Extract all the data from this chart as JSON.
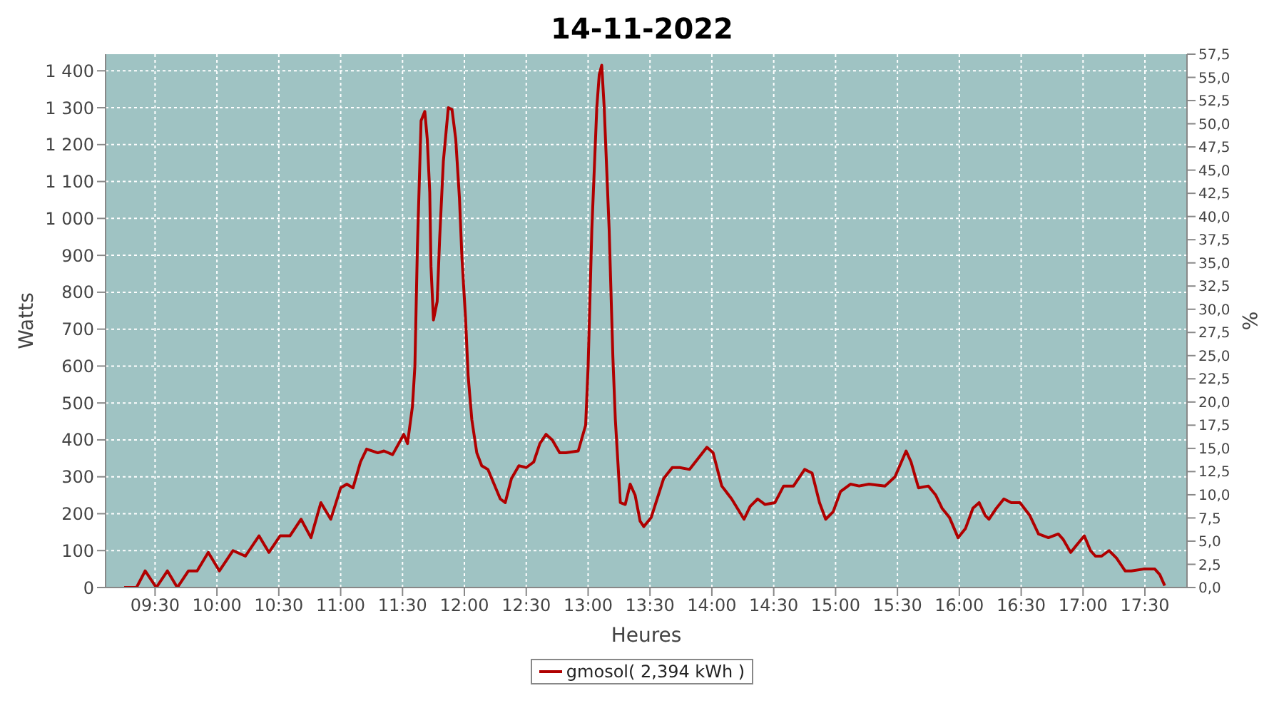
{
  "chart_data": {
    "type": "line",
    "title": "14-11-2022",
    "xlabel": "Heures",
    "ylabel": "Watts",
    "y2label": "%",
    "x": [
      9.25,
      9.35,
      9.42,
      9.51,
      9.6,
      9.68,
      9.77,
      9.84,
      9.93,
      10.02,
      10.13,
      10.23,
      10.34,
      10.42,
      10.51,
      10.59,
      10.68,
      10.76,
      10.84,
      10.92,
      11.0,
      11.05,
      11.1,
      11.16,
      11.21,
      11.3,
      11.35,
      11.42,
      11.51,
      11.54,
      11.58,
      11.6,
      11.62,
      11.65,
      11.68,
      11.7,
      11.72,
      11.73,
      11.75,
      11.78,
      11.8,
      11.83,
      11.87,
      11.9,
      11.93,
      11.96,
      11.98,
      12.01,
      12.03,
      12.06,
      12.1,
      12.14,
      12.19,
      12.24,
      12.29,
      12.33,
      12.38,
      12.44,
      12.5,
      12.56,
      12.61,
      12.66,
      12.71,
      12.77,
      12.82,
      12.92,
      12.98,
      13.0,
      13.03,
      13.07,
      13.09,
      13.11,
      13.13,
      13.17,
      13.2,
      13.22,
      13.26,
      13.3,
      13.34,
      13.38,
      13.42,
      13.45,
      13.51,
      13.61,
      13.68,
      13.74,
      13.82,
      13.89,
      13.96,
      14.01,
      14.08,
      14.16,
      14.26,
      14.31,
      14.37,
      14.43,
      14.51,
      14.58,
      14.66,
      14.75,
      14.81,
      14.87,
      14.92,
      14.98,
      15.04,
      15.12,
      15.19,
      15.27,
      15.4,
      15.48,
      15.57,
      15.61,
      15.67,
      15.75,
      15.81,
      15.86,
      15.92,
      15.99,
      16.05,
      16.11,
      16.16,
      16.21,
      16.24,
      16.3,
      16.36,
      16.42,
      16.49,
      16.57,
      16.64,
      16.72,
      16.8,
      16.84,
      16.9,
      16.96,
      17.01,
      17.06,
      17.1,
      17.15,
      17.21,
      17.27,
      17.34,
      17.39,
      17.49,
      17.58,
      17.62,
      17.66
    ],
    "series": [
      {
        "name": "gmosol( 2,394 kWh )",
        "color": "#b00000",
        "values": [
          0,
          0,
          45,
          0,
          45,
          0,
          45,
          45,
          95,
          45,
          100,
          85,
          140,
          95,
          140,
          140,
          185,
          135,
          230,
          185,
          270,
          280,
          270,
          340,
          375,
          365,
          370,
          360,
          415,
          390,
          490,
          600,
          920,
          1265,
          1290,
          1215,
          1070,
          870,
          725,
          775,
          945,
          1155,
          1300,
          1295,
          1215,
          1055,
          895,
          725,
          575,
          455,
          365,
          330,
          320,
          280,
          240,
          230,
          295,
          330,
          325,
          340,
          390,
          415,
          400,
          365,
          365,
          370,
          440,
          600,
          970,
          1300,
          1390,
          1415,
          1300,
          970,
          625,
          455,
          230,
          225,
          280,
          250,
          180,
          165,
          190,
          295,
          325,
          325,
          320,
          350,
          380,
          365,
          275,
          240,
          185,
          220,
          240,
          225,
          230,
          275,
          275,
          320,
          310,
          230,
          185,
          205,
          260,
          280,
          275,
          280,
          275,
          300,
          370,
          340,
          270,
          275,
          250,
          215,
          190,
          135,
          160,
          215,
          230,
          195,
          185,
          215,
          240,
          230,
          230,
          195,
          145,
          135,
          145,
          130,
          95,
          120,
          140,
          100,
          85,
          85,
          100,
          80,
          45,
          45,
          50,
          50,
          35,
          5
        ]
      }
    ],
    "xlim": [
      9.1,
      17.84
    ],
    "xticks": [
      {
        "value": 9.5,
        "label": "09:30"
      },
      {
        "value": 10,
        "label": "10:00"
      },
      {
        "value": 10.5,
        "label": "10:30"
      },
      {
        "value": 11,
        "label": "11:00"
      },
      {
        "value": 11.5,
        "label": "11:30"
      },
      {
        "value": 12,
        "label": "12:00"
      },
      {
        "value": 12.5,
        "label": "12:30"
      },
      {
        "value": 13,
        "label": "13:00"
      },
      {
        "value": 13.5,
        "label": "13:30"
      },
      {
        "value": 14,
        "label": "14:00"
      },
      {
        "value": 14.5,
        "label": "14:30"
      },
      {
        "value": 15,
        "label": "15:00"
      },
      {
        "value": 15.5,
        "label": "15:30"
      },
      {
        "value": 16,
        "label": "16:00"
      },
      {
        "value": 16.5,
        "label": "16:30"
      },
      {
        "value": 17,
        "label": "17:00"
      },
      {
        "value": 17.5,
        "label": "17:30"
      }
    ],
    "ylim": [
      0,
      1445
    ],
    "yticks": [
      0,
      100,
      200,
      300,
      400,
      500,
      600,
      700,
      800,
      900,
      {
        "value": 1000,
        "label": "1 000"
      },
      {
        "value": 1100,
        "label": "1 100"
      },
      {
        "value": 1200,
        "label": "1 200"
      },
      {
        "value": 1300,
        "label": "1 300"
      },
      {
        "value": 1400,
        "label": "1 400"
      }
    ],
    "y2lim": [
      0,
      57.5
    ],
    "y2ticks": [
      {
        "value": 0,
        "label": "0,0"
      },
      {
        "value": 2.5,
        "label": "2,5"
      },
      {
        "value": 5,
        "label": "5,0"
      },
      {
        "value": 7.5,
        "label": "7,5"
      },
      {
        "value": 10,
        "label": "10,0"
      },
      {
        "value": 12.5,
        "label": "12,5"
      },
      {
        "value": 15,
        "label": "15,0"
      },
      {
        "value": 17.5,
        "label": "17,5"
      },
      {
        "value": 20,
        "label": "20,0"
      },
      {
        "value": 22.5,
        "label": "22,5"
      },
      {
        "value": 25,
        "label": "25,0"
      },
      {
        "value": 27.5,
        "label": "27,5"
      },
      {
        "value": 30,
        "label": "30,0"
      },
      {
        "value": 32.5,
        "label": "32,5"
      },
      {
        "value": 35,
        "label": "35,0"
      },
      {
        "value": 37.5,
        "label": "37,5"
      },
      {
        "value": 40,
        "label": "40,0"
      },
      {
        "value": 42.5,
        "label": "42,5"
      },
      {
        "value": 45,
        "label": "45,0"
      },
      {
        "value": 47.5,
        "label": "47,5"
      },
      {
        "value": 50,
        "label": "50,0"
      },
      {
        "value": 52.5,
        "label": "52,5"
      },
      {
        "value": 55,
        "label": "55,0"
      },
      {
        "value": 57.5,
        "label": "57,5"
      }
    ],
    "grid": true,
    "legend": "bottom",
    "marker": "none",
    "line_style": "solid"
  }
}
